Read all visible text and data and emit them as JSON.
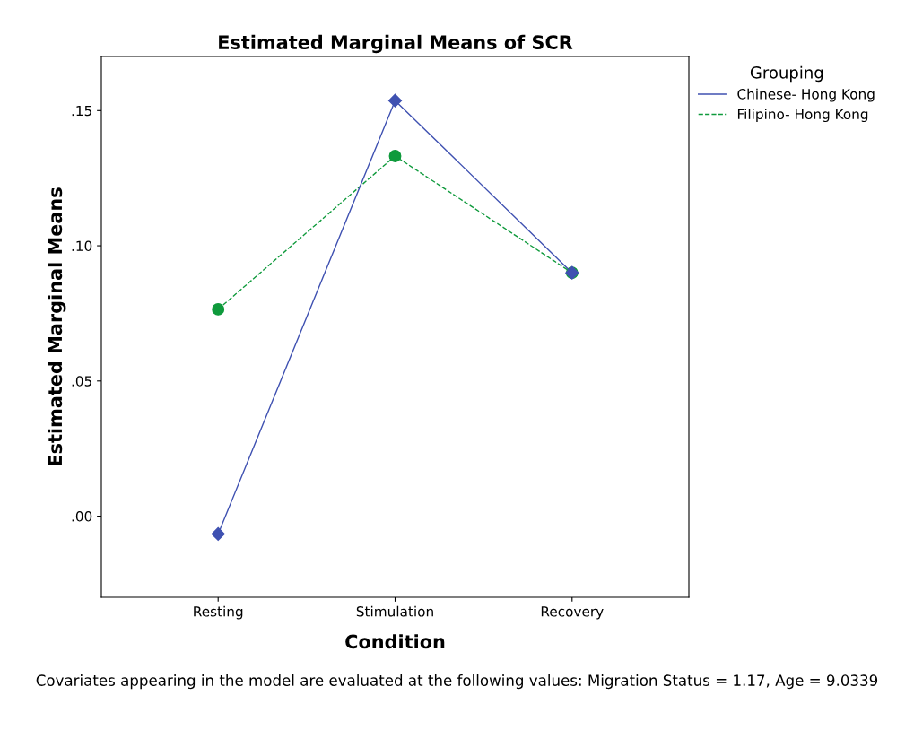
{
  "chart_data": {
    "type": "line",
    "title": "Estimated Marginal Means of SCR",
    "xlabel": "Condition",
    "ylabel": "Estimated Marginal Means",
    "legend_title": "Grouping",
    "categories": [
      "Resting",
      "Stimulation",
      "Recovery"
    ],
    "series": [
      {
        "name": "Chinese- Hong Kong",
        "color": "#3f51b1",
        "values": [
          -0.0066,
          0.1537,
          0.09
        ],
        "marker": "diamond",
        "line_style": "solid"
      },
      {
        "name": "Filipino- Hong Kong",
        "color": "#0f9a3c",
        "values": [
          0.0765,
          0.1332,
          0.09
        ],
        "marker": "circle",
        "line_style": "dashed"
      }
    ],
    "ylim": [
      -0.03,
      0.17
    ],
    "yticks": [
      {
        "value": 0,
        "label": ".00"
      },
      {
        "value": 0.05,
        "label": ".05"
      },
      {
        "value": 0.1,
        "label": ".10"
      },
      {
        "value": 0.15,
        "label": ".15"
      }
    ],
    "grid": false,
    "legend": "top right",
    "annotations": [
      "Covariates appearing in the model are evaluated at the following values: Migration Status = 1.17, Age = 9.0339"
    ]
  }
}
